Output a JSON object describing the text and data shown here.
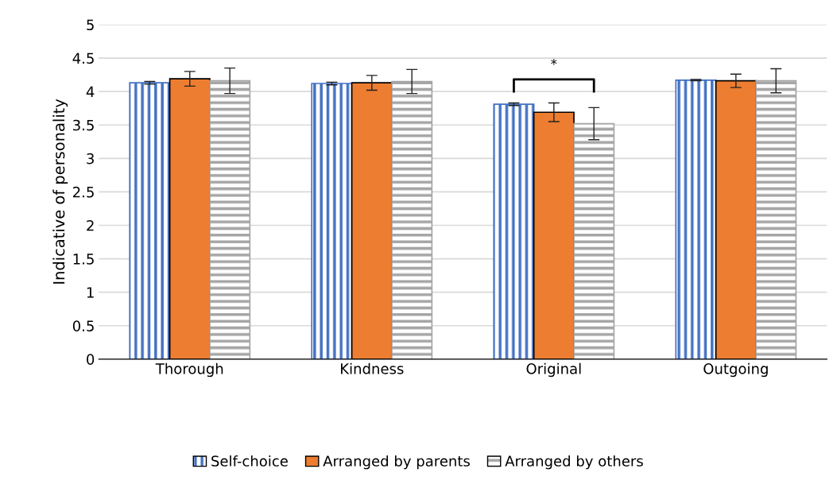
{
  "chart_data": {
    "type": "bar",
    "ylabel": "Indicative of personality",
    "categories": [
      "Thorough",
      "Kindness",
      "Original",
      "Outgoing"
    ],
    "series": [
      {
        "name": "Self-choice",
        "color": "#4472c4",
        "values": [
          4.13,
          4.12,
          3.81,
          4.17
        ],
        "errors": [
          0.02,
          0.02,
          0.02,
          0.01
        ]
      },
      {
        "name": "Arranged by parents",
        "color": "#ed7d31",
        "values": [
          4.19,
          4.13,
          3.69,
          4.16
        ],
        "errors": [
          0.11,
          0.11,
          0.14,
          0.1
        ]
      },
      {
        "name": "Arranged by others",
        "color": "#a5a5a5",
        "values": [
          4.16,
          4.15,
          3.52,
          4.16
        ],
        "errors": [
          0.19,
          0.18,
          0.24,
          0.18
        ]
      }
    ],
    "ylim": [
      0,
      5
    ],
    "yticks": [
      0,
      0.5,
      1,
      1.5,
      2,
      2.5,
      3,
      3.5,
      4,
      4.5,
      5
    ],
    "annotations": [
      "*"
    ],
    "grid": "y",
    "legend": "bottom"
  }
}
